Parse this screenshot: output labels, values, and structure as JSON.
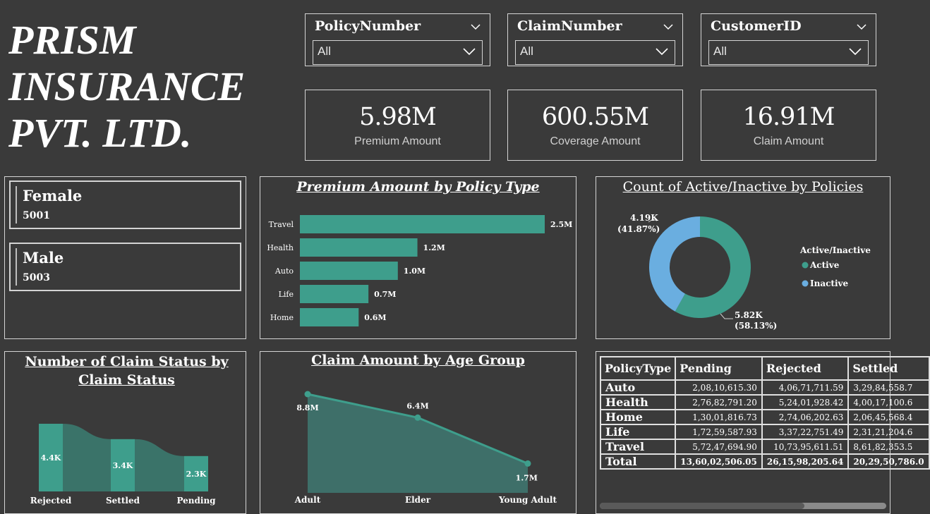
{
  "company": {
    "line1": "PRISM",
    "line2": "INSURANCE",
    "line3": "PVT. LTD."
  },
  "slicers": [
    {
      "label": "PolicyNumber",
      "value": "All"
    },
    {
      "label": "ClaimNumber",
      "value": "All"
    },
    {
      "label": "CustomerID",
      "value": "All"
    }
  ],
  "kpis": [
    {
      "value": "5.98M",
      "label": "Premium Amount"
    },
    {
      "value": "600.55M",
      "label": "Coverage Amount"
    },
    {
      "value": "16.91M",
      "label": "Claim Amount"
    }
  ],
  "gender": [
    {
      "label": "Female",
      "value": "5001"
    },
    {
      "label": "Male",
      "value": "5003"
    }
  ],
  "colors": {
    "teal": "#3e9e8c",
    "blue": "#6aaee0",
    "background": "#3a3a3a",
    "border": "#d4d4d4"
  },
  "chart_data": [
    {
      "type": "bar",
      "orientation": "horizontal",
      "title": "Premium Amount by Policy Type",
      "categories": [
        "Travel",
        "Health",
        "Auto",
        "Life",
        "Home"
      ],
      "values": [
        2.5,
        1.2,
        1.0,
        0.7,
        0.6
      ],
      "value_labels": [
        "2.5M",
        "1.2M",
        "1.0M",
        "0.7M",
        "0.6M"
      ],
      "unit": "M"
    },
    {
      "type": "pie",
      "variant": "donut",
      "title": "Count of Active/Inactive by Policies",
      "legend_title": "Active/Inactive",
      "legend_position": "right",
      "categories": [
        "Active",
        "Inactive"
      ],
      "values": [
        5.82,
        4.19
      ],
      "percents": [
        58.13,
        41.87
      ],
      "value_labels": [
        "5.82K",
        "4.19K"
      ],
      "percent_labels": [
        "(58.13%)",
        "(41.87%)"
      ]
    },
    {
      "type": "area",
      "variant": "ribbon",
      "title": "Number of Claim Status by Claim Status",
      "categories": [
        "Rejected",
        "Settled",
        "Pending"
      ],
      "values": [
        4.4,
        3.4,
        2.3
      ],
      "value_labels": [
        "4.4K",
        "3.4K",
        "2.3K"
      ]
    },
    {
      "type": "area",
      "title": "Claim Amount by Age Group",
      "categories": [
        "Adult",
        "Elder",
        "Young Adult"
      ],
      "values": [
        8.8,
        6.4,
        1.7
      ],
      "value_labels": [
        "8.8M",
        "6.4M",
        "1.7M"
      ]
    }
  ],
  "matrix": {
    "columns": [
      "PolicyType",
      "Pending",
      "Rejected",
      "Settled"
    ],
    "rows": [
      {
        "label": "Auto",
        "cells": [
          "2,08,10,615.30",
          "4,06,71,711.59",
          "3,29,84,558.7"
        ]
      },
      {
        "label": "Health",
        "cells": [
          "2,76,82,791.20",
          "5,24,01,928.42",
          "4,00,17,100.6"
        ]
      },
      {
        "label": "Home",
        "cells": [
          "1,30,01,816.73",
          "2,74,06,202.63",
          "2,06,45,568.4"
        ]
      },
      {
        "label": "Life",
        "cells": [
          "1,72,59,587.93",
          "3,37,22,751.49",
          "2,31,21,204.6"
        ]
      },
      {
        "label": "Travel",
        "cells": [
          "5,72,47,694.90",
          "10,73,95,611.51",
          "8,61,82,353.5"
        ]
      },
      {
        "label": "Total",
        "cells": [
          "13,60,02,506.05",
          "26,15,98,205.64",
          "20,29,50,786.0"
        ]
      }
    ]
  }
}
